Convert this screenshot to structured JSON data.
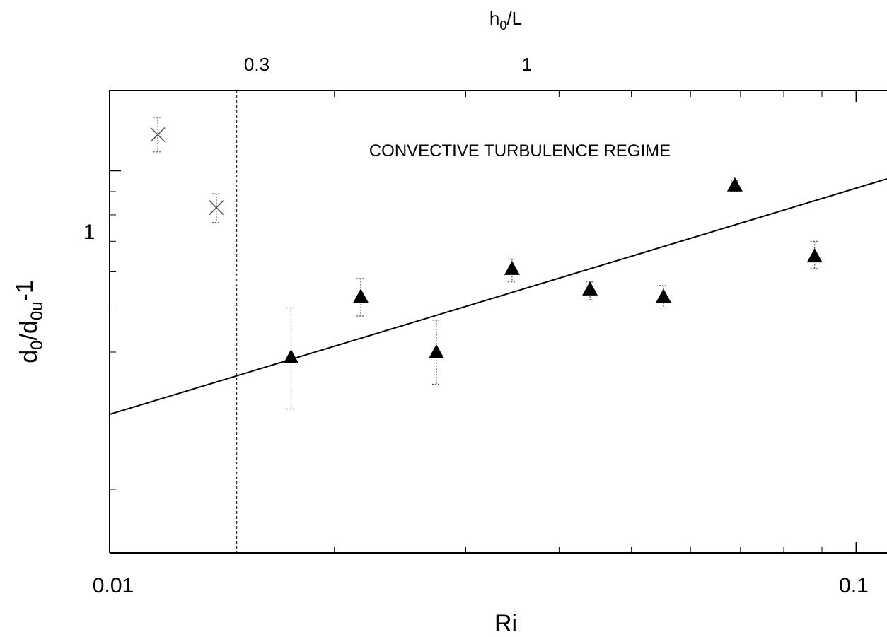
{
  "chart_data": {
    "type": "scatter",
    "x_scale": "log",
    "y_scale": "log",
    "xlim": [
      0.01,
      0.11
    ],
    "ylim": [
      0.145,
      1.5
    ],
    "xlabel": "Ri",
    "ylabel_parts": {
      "a": "d",
      "a_sub": "0",
      "b": "/d",
      "b_sub": "0u",
      "c": "-1"
    },
    "top_axis_label_parts": {
      "a": "h",
      "a_sub": "0",
      "b": "/L"
    },
    "x_ticks": [
      {
        "value": 0.01,
        "label": "0.01"
      },
      {
        "value": 0.1,
        "label": "0.1"
      }
    ],
    "y_ticks": [
      {
        "value": 1,
        "label": "1"
      }
    ],
    "top_ticks": [
      {
        "ri": 0.0148,
        "label": "0.3"
      },
      {
        "ri": 0.0388,
        "label": "1"
      }
    ],
    "annotation": "CONVECTIVE TURBULENCE REGIME",
    "regime_boundary_ri": 0.0148,
    "cross_points": [
      {
        "x": 0.0116,
        "y": 1.2,
        "err_low": 1.1,
        "err_high": 1.31
      },
      {
        "x": 0.0139,
        "y": 0.83,
        "err_low": 0.77,
        "err_high": 0.89
      }
    ],
    "triangle_points": [
      {
        "x": 0.0175,
        "y": 0.39,
        "err_low": 0.3,
        "err_high": 0.5
      },
      {
        "x": 0.0217,
        "y": 0.53,
        "err_low": 0.48,
        "err_high": 0.58
      },
      {
        "x": 0.0274,
        "y": 0.4,
        "err_low": 0.34,
        "err_high": 0.47
      },
      {
        "x": 0.0346,
        "y": 0.61,
        "err_low": 0.57,
        "err_high": 0.64
      },
      {
        "x": 0.044,
        "y": 0.55,
        "err_low": 0.52,
        "err_high": 0.57
      },
      {
        "x": 0.0552,
        "y": 0.53,
        "err_low": 0.5,
        "err_high": 0.56
      },
      {
        "x": 0.0688,
        "y": 0.93,
        "err_low": 0.9,
        "err_high": 0.95
      },
      {
        "x": 0.088,
        "y": 0.65,
        "err_low": 0.61,
        "err_high": 0.7
      }
    ],
    "fit_line": {
      "x": [
        0.01,
        0.11
      ],
      "y": [
        0.292,
        0.96
      ]
    }
  }
}
